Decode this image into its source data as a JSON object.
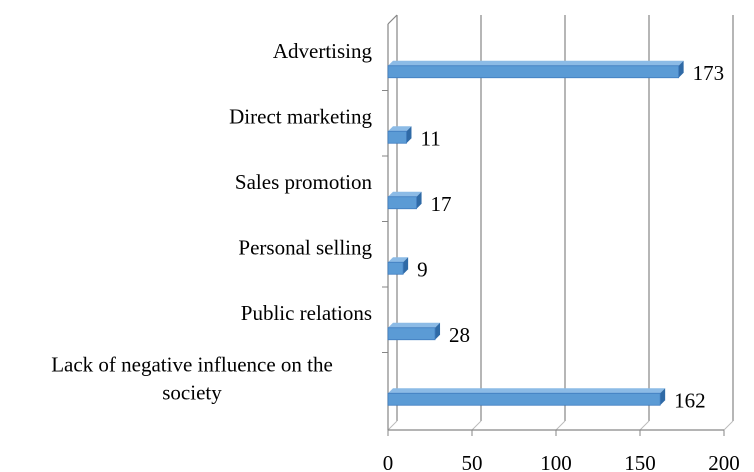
{
  "chart_data": {
    "type": "bar",
    "orientation": "horizontal",
    "categories": [
      "Advertising",
      "Direct marketing",
      "Sales promotion",
      "Personal selling",
      "Public relations",
      "Lack of negative influence on the society"
    ],
    "values": [
      173,
      11,
      17,
      9,
      28,
      162
    ],
    "color": "#5b9bd5",
    "xlim": [
      0,
      200
    ],
    "xticks": [
      0,
      50,
      100,
      150,
      200
    ],
    "grid": true
  }
}
